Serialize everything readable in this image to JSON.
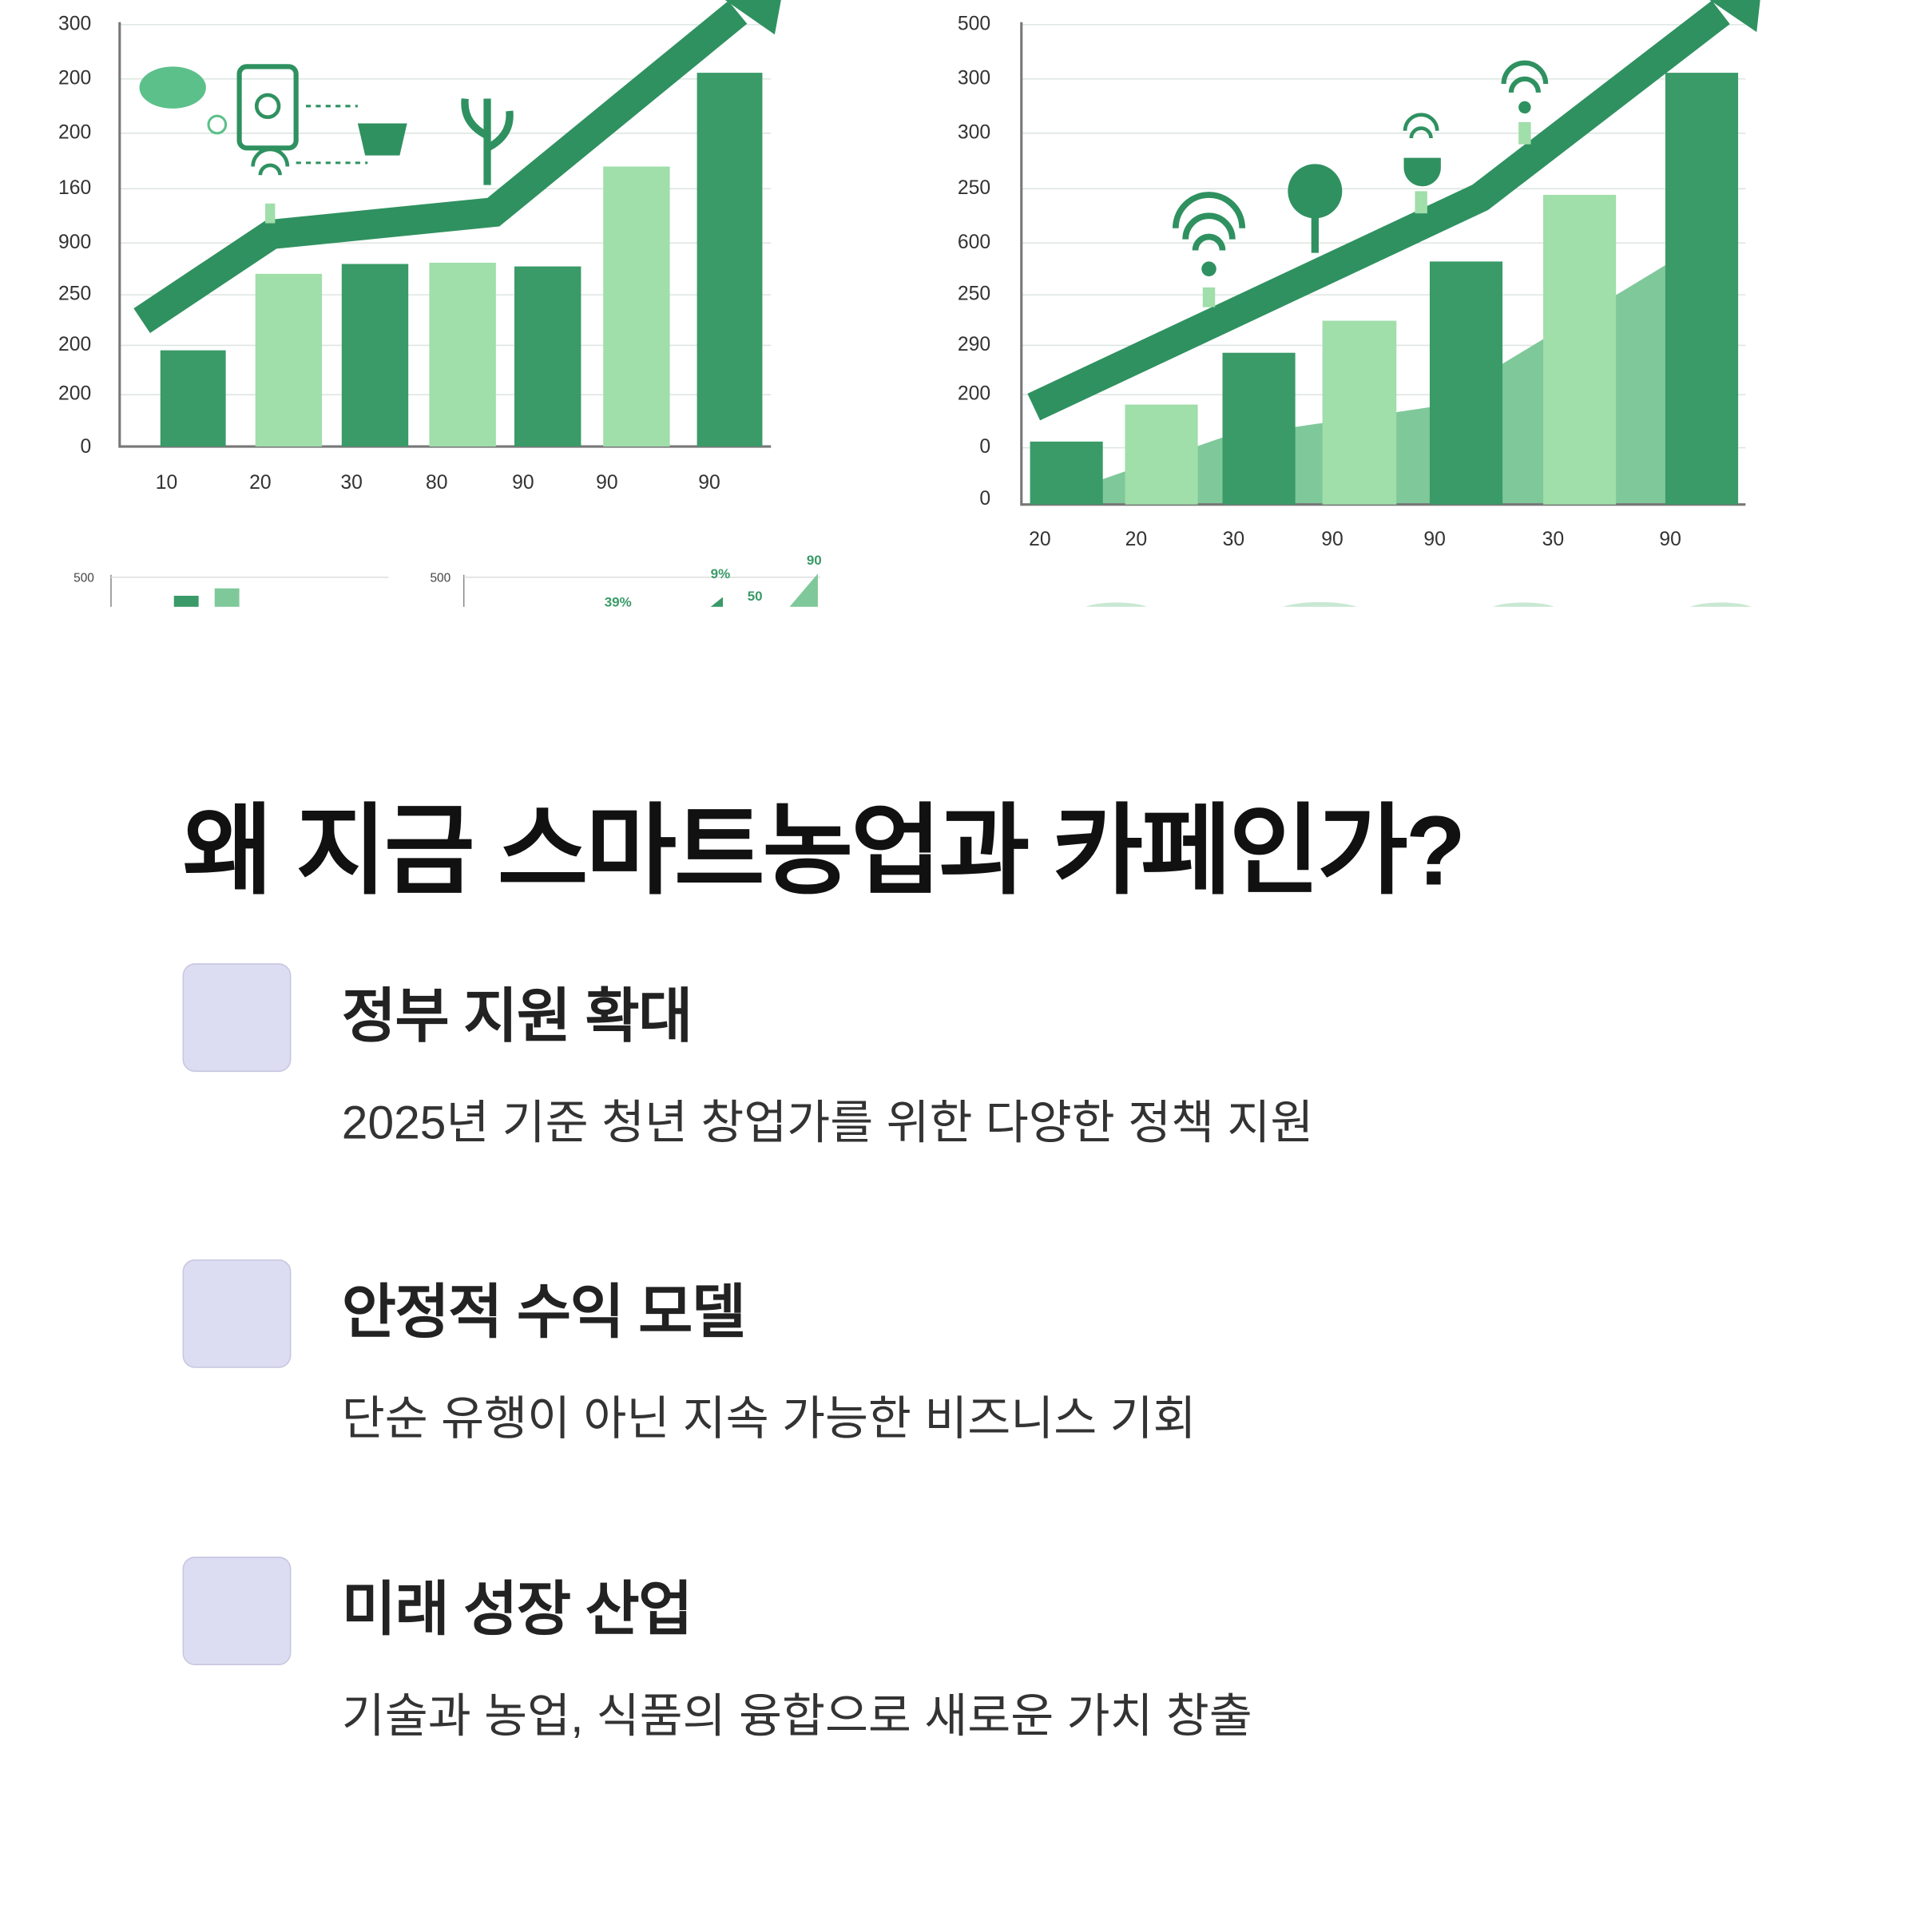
{
  "illustration": {
    "left_chart": {
      "y_labels": [
        "300",
        "200",
        "200",
        "160",
        "900",
        "250",
        "200",
        "200",
        "0"
      ],
      "x_labels": [
        "10",
        "20",
        "30",
        "80",
        "90",
        "90",
        "90"
      ]
    },
    "right_chart": {
      "y_labels": [
        "500",
        "300",
        "300",
        "250",
        "600",
        "250",
        "290",
        "200",
        "0",
        "0"
      ],
      "x_labels": [
        "20",
        "20",
        "30",
        "90",
        "90",
        "30",
        "90"
      ]
    },
    "thumbnail_labels": [
      "500",
      "500",
      "39%",
      "9%",
      "50",
      "90"
    ]
  },
  "heading": "왜 지금 스마트농업과 카페인가?",
  "items": [
    {
      "title": "정부 지원 확대",
      "description": "2025년 기준 청년 창업가를 위한 다양한 정책 지원"
    },
    {
      "title": "안정적 수익 모델",
      "description": "단순 유행이 아닌 지속 가능한 비즈니스 기회"
    },
    {
      "title": "미래 성장 산업",
      "description": "기술과 농업, 식품의 융합으로 새로운 가치 창출"
    }
  ]
}
